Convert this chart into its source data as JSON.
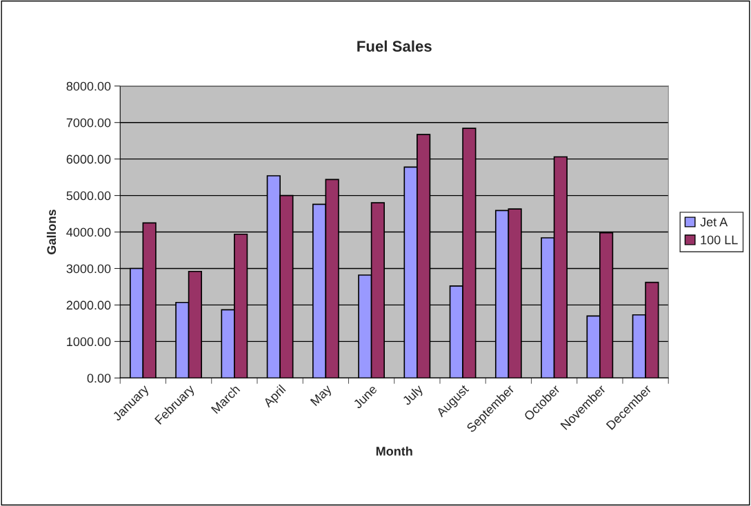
{
  "chart_data": {
    "type": "bar",
    "title": "Fuel Sales",
    "xlabel": "Month",
    "ylabel": "Gallons",
    "categories": [
      "January",
      "February",
      "March",
      "April",
      "May",
      "June",
      "July",
      "August",
      "September",
      "October",
      "November",
      "December"
    ],
    "series": [
      {
        "name": "Jet A",
        "color": "#9999ff",
        "values": [
          3000,
          2070,
          1870,
          5540,
          4760,
          2820,
          5780,
          2520,
          4590,
          3840,
          1700,
          1730
        ]
      },
      {
        "name": "100 LL",
        "color": "#993366",
        "values": [
          4250,
          2920,
          3940,
          5000,
          5440,
          4800,
          6670,
          6840,
          4630,
          6060,
          3980,
          2620
        ]
      }
    ],
    "ylim": [
      0,
      8000
    ],
    "yticks": [
      {
        "value": 0,
        "label": "0.00"
      },
      {
        "value": 1000,
        "label": "1000.00"
      },
      {
        "value": 2000,
        "label": "2000.00"
      },
      {
        "value": 3000,
        "label": "3000.00"
      },
      {
        "value": 4000,
        "label": "4000.00"
      },
      {
        "value": 5000,
        "label": "5000.00"
      },
      {
        "value": 6000,
        "label": "6000.00"
      },
      {
        "value": 7000,
        "label": "7000.00"
      },
      {
        "value": 8000,
        "label": "8000.00"
      }
    ],
    "grid": "y",
    "legend": "right"
  }
}
